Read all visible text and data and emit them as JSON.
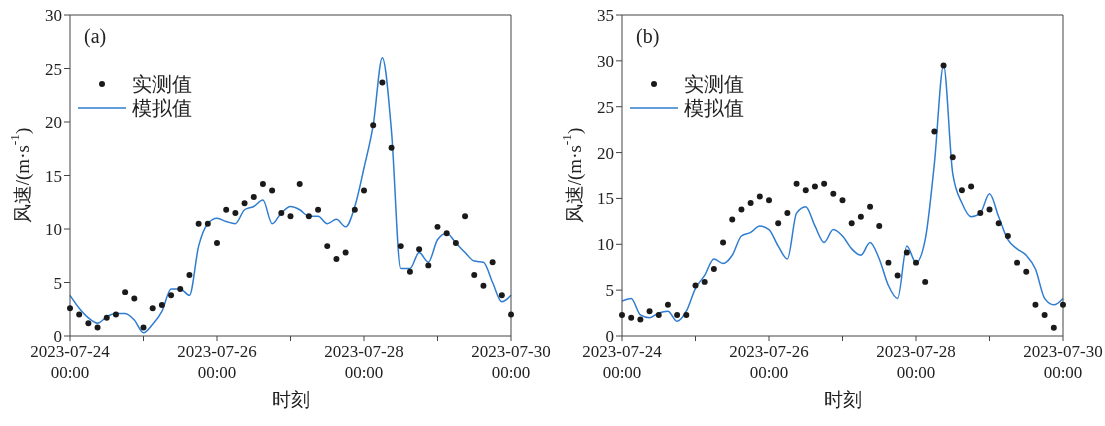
{
  "chart_data": [
    {
      "type": "scatter",
      "title": "(a)",
      "xlabel": "时刻",
      "ylabel": "风速/(m·s$^{-1}$)",
      "legend": "top left",
      "x": [
        "2023-07-24T00:00",
        "2023-07-24T03:00",
        "2023-07-24T06:00",
        "2023-07-24T09:00",
        "2023-07-24T12:00",
        "2023-07-24T15:00",
        "2023-07-24T18:00",
        "2023-07-24T21:00",
        "2023-07-25T00:00",
        "2023-07-25T03:00",
        "2023-07-25T06:00",
        "2023-07-25T09:00",
        "2023-07-25T12:00",
        "2023-07-25T15:00",
        "2023-07-25T18:00",
        "2023-07-25T21:00",
        "2023-07-26T00:00",
        "2023-07-26T03:00",
        "2023-07-26T06:00",
        "2023-07-26T09:00",
        "2023-07-26T12:00",
        "2023-07-26T15:00",
        "2023-07-26T18:00",
        "2023-07-26T21:00",
        "2023-07-27T00:00",
        "2023-07-27T03:00",
        "2023-07-27T06:00",
        "2023-07-27T09:00",
        "2023-07-27T12:00",
        "2023-07-27T15:00",
        "2023-07-27T18:00",
        "2023-07-27T21:00",
        "2023-07-28T00:00",
        "2023-07-28T03:00",
        "2023-07-28T06:00",
        "2023-07-28T09:00",
        "2023-07-28T12:00",
        "2023-07-28T15:00",
        "2023-07-28T18:00",
        "2023-07-28T21:00",
        "2023-07-29T00:00",
        "2023-07-29T03:00",
        "2023-07-29T06:00",
        "2023-07-29T09:00",
        "2023-07-29T12:00",
        "2023-07-29T15:00",
        "2023-07-29T18:00",
        "2023-07-29T21:00",
        "2023-07-30T00:00"
      ],
      "xlim": [
        "2023-07-24T00:00",
        "2023-07-30T00:00"
      ],
      "xticks": [
        {
          "value": "2023-07-24T00:00",
          "label": "2023-07-24 00:00"
        },
        {
          "value": "2023-07-25T00:00",
          "label": null
        },
        {
          "value": "2023-07-26T00:00",
          "label": "2023-07-26 00:00"
        },
        {
          "value": "2023-07-27T00:00",
          "label": null
        },
        {
          "value": "2023-07-28T00:00",
          "label": "2023-07-28 00:00"
        },
        {
          "value": "2023-07-29T00:00",
          "label": null
        },
        {
          "value": "2023-07-30T00:00",
          "label": "2023-07-30 00:00"
        }
      ],
      "ylim": [
        0,
        30
      ],
      "yticks": [
        0,
        5,
        10,
        15,
        20,
        25,
        30
      ],
      "series": [
        {
          "name": "实测值",
          "type": "scatter",
          "marker": "circle",
          "color": "#1a1a1a",
          "values": [
            2.6,
            2.0,
            1.2,
            0.8,
            1.7,
            2.0,
            4.1,
            3.5,
            0.8,
            2.6,
            2.9,
            3.8,
            4.4,
            5.7,
            10.5,
            10.5,
            8.7,
            11.8,
            11.5,
            12.4,
            13.0,
            14.2,
            13.6,
            11.5,
            11.2,
            14.2,
            11.2,
            11.8,
            8.4,
            7.2,
            7.8,
            11.8,
            13.6,
            19.7,
            23.7,
            17.6,
            8.4,
            6.0,
            8.1,
            6.6,
            10.2,
            9.6,
            8.7,
            11.2,
            5.7,
            4.7,
            6.9,
            3.8,
            2.0
          ]
        },
        {
          "name": "模拟值",
          "type": "line",
          "marker": "none",
          "color": "#2f7dd1",
          "values": [
            3.8,
            2.6,
            1.7,
            1.2,
            1.8,
            2.1,
            2.1,
            1.5,
            0.3,
            1.1,
            2.3,
            4.4,
            4.4,
            3.8,
            8.4,
            10.5,
            11.0,
            10.7,
            10.5,
            11.8,
            12.1,
            12.7,
            10.5,
            11.5,
            12.1,
            11.8,
            11.2,
            11.2,
            10.5,
            10.9,
            10.2,
            12.1,
            15.7,
            19.7,
            26.0,
            19.1,
            6.3,
            6.3,
            7.8,
            6.9,
            9.0,
            9.6,
            8.7,
            7.8,
            7.0,
            6.9,
            5.0,
            3.2,
            3.8
          ]
        }
      ]
    },
    {
      "type": "scatter",
      "title": "(b)",
      "xlabel": "时刻",
      "ylabel": "风速/(m·s$^{-1}$)",
      "legend": "top left",
      "x": [
        "2023-07-24T00:00",
        "2023-07-24T03:00",
        "2023-07-24T06:00",
        "2023-07-24T09:00",
        "2023-07-24T12:00",
        "2023-07-24T15:00",
        "2023-07-24T18:00",
        "2023-07-24T21:00",
        "2023-07-25T00:00",
        "2023-07-25T03:00",
        "2023-07-25T06:00",
        "2023-07-25T09:00",
        "2023-07-25T12:00",
        "2023-07-25T15:00",
        "2023-07-25T18:00",
        "2023-07-25T21:00",
        "2023-07-26T00:00",
        "2023-07-26T03:00",
        "2023-07-26T06:00",
        "2023-07-26T09:00",
        "2023-07-26T12:00",
        "2023-07-26T15:00",
        "2023-07-26T18:00",
        "2023-07-26T21:00",
        "2023-07-27T00:00",
        "2023-07-27T03:00",
        "2023-07-27T06:00",
        "2023-07-27T09:00",
        "2023-07-27T12:00",
        "2023-07-27T15:00",
        "2023-07-27T18:00",
        "2023-07-27T21:00",
        "2023-07-28T00:00",
        "2023-07-28T03:00",
        "2023-07-28T06:00",
        "2023-07-28T09:00",
        "2023-07-28T12:00",
        "2023-07-28T15:00",
        "2023-07-28T18:00",
        "2023-07-28T21:00",
        "2023-07-29T00:00",
        "2023-07-29T03:00",
        "2023-07-29T06:00",
        "2023-07-29T09:00",
        "2023-07-29T12:00",
        "2023-07-29T15:00",
        "2023-07-29T18:00",
        "2023-07-29T21:00",
        "2023-07-30T00:00"
      ],
      "xlim": [
        "2023-07-24T00:00",
        "2023-07-30T00:00"
      ],
      "xticks": [
        {
          "value": "2023-07-24T00:00",
          "label": "2023-07-24 00:00"
        },
        {
          "value": "2023-07-25T00:00",
          "label": null
        },
        {
          "value": "2023-07-26T00:00",
          "label": "2023-07-26 00:00"
        },
        {
          "value": "2023-07-27T00:00",
          "label": null
        },
        {
          "value": "2023-07-28T00:00",
          "label": "2023-07-28 00:00"
        },
        {
          "value": "2023-07-29T00:00",
          "label": null
        },
        {
          "value": "2023-07-30T00:00",
          "label": "2023-07-30 00:00"
        }
      ],
      "ylim": [
        0,
        35
      ],
      "yticks": [
        0,
        5,
        10,
        15,
        20,
        25,
        30,
        35
      ],
      "series": [
        {
          "name": "实测值",
          "type": "scatter",
          "marker": "circle",
          "color": "#1a1a1a",
          "values": [
            2.3,
            2.0,
            1.8,
            2.7,
            2.3,
            3.4,
            2.3,
            2.3,
            5.5,
            5.9,
            7.3,
            10.2,
            12.7,
            13.8,
            14.5,
            15.2,
            14.8,
            12.3,
            13.4,
            16.6,
            15.9,
            16.3,
            16.6,
            15.5,
            14.8,
            12.3,
            13.0,
            14.1,
            12.0,
            8.0,
            6.6,
            9.1,
            8.0,
            5.9,
            22.3,
            29.5,
            19.5,
            15.9,
            16.3,
            13.4,
            13.8,
            12.3,
            10.9,
            8.0,
            7.0,
            3.4,
            2.3,
            0.9,
            3.4
          ]
        },
        {
          "name": "模拟值",
          "type": "line",
          "marker": "none",
          "color": "#2f7dd1",
          "values": [
            3.8,
            4.1,
            2.3,
            2.0,
            2.5,
            2.7,
            1.6,
            2.7,
            5.2,
            6.6,
            8.4,
            7.9,
            8.8,
            10.9,
            11.3,
            12.0,
            11.6,
            9.8,
            8.4,
            13.4,
            14.1,
            12.0,
            10.2,
            11.6,
            10.9,
            9.5,
            8.8,
            10.2,
            8.4,
            5.5,
            4.1,
            9.8,
            8.0,
            10.5,
            18.8,
            29.5,
            17.7,
            14.5,
            13.0,
            13.4,
            15.5,
            13.0,
            10.5,
            9.5,
            8.8,
            7.3,
            4.1,
            3.4,
            4.1
          ]
        }
      ]
    }
  ]
}
